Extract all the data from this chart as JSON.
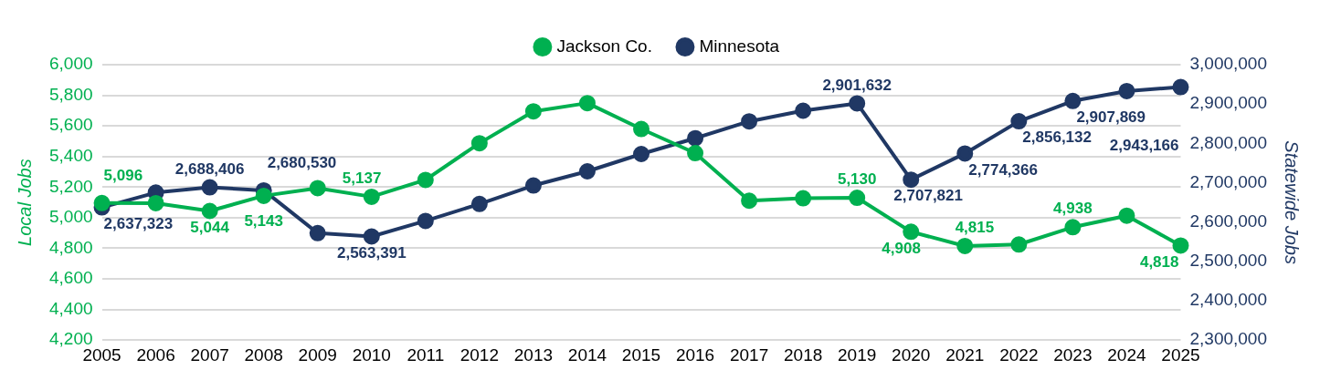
{
  "chart_data": {
    "type": "line",
    "categories": [
      "2005",
      "2006",
      "2007",
      "2008",
      "2009",
      "2010",
      "2011",
      "2012",
      "2013",
      "2014",
      "2015",
      "2016",
      "2017",
      "2018",
      "2019",
      "2020",
      "2021",
      "2022",
      "2023",
      "2024",
      "2025"
    ],
    "series": [
      {
        "name": "Jackson Co.",
        "color": "#00b050",
        "axis": "y",
        "values": [
          5096,
          5095,
          5044,
          5143,
          5193,
          5137,
          5247,
          5487,
          5695,
          5749,
          5580,
          5422,
          5111,
          5127,
          5130,
          4908,
          4815,
          4825,
          4938,
          5013,
          4818
        ],
        "value_labels": [
          "5,096",
          null,
          "5,044",
          "5,143",
          null,
          "5,137",
          null,
          null,
          null,
          null,
          null,
          null,
          null,
          null,
          "5,130",
          "4,908",
          "4,815",
          null,
          "4,938",
          null,
          "4,818"
        ]
      },
      {
        "name": "Minnesota",
        "color": "#203864",
        "axis": "y2",
        "values": [
          2637323,
          2675000,
          2688406,
          2680530,
          2572000,
          2563391,
          2603000,
          2646000,
          2693000,
          2729000,
          2773000,
          2813000,
          2856000,
          2883000,
          2901632,
          2707821,
          2774366,
          2856132,
          2907869,
          2933000,
          2943166
        ],
        "value_labels": [
          "2,637,323",
          null,
          "2,688,406",
          "2,680,530",
          null,
          "2,563,391",
          null,
          null,
          null,
          null,
          null,
          null,
          null,
          null,
          "2,901,632",
          "2,707,821",
          "2,774,366",
          "2,856,132",
          "2,907,869",
          null,
          "2,943,166"
        ]
      }
    ],
    "ylabel": "Local Jobs",
    "y2label": "Statewide Jobs",
    "ylim": [
      4200,
      6000
    ],
    "yticks": [
      {
        "value": 4200,
        "label": "4,200"
      },
      {
        "value": 4400,
        "label": "4,400"
      },
      {
        "value": 4600,
        "label": "4,600"
      },
      {
        "value": 4800,
        "label": "4,800"
      },
      {
        "value": 5000,
        "label": "5,000"
      },
      {
        "value": 5200,
        "label": "5,200"
      },
      {
        "value": 5400,
        "label": "5,400"
      },
      {
        "value": 5600,
        "label": "5,600"
      },
      {
        "value": 5800,
        "label": "5,800"
      },
      {
        "value": 6000,
        "label": "6,000"
      }
    ],
    "y2lim": [
      2300000,
      3000000
    ],
    "y2ticks": [
      {
        "value": 2300000,
        "label": "2,300,000"
      },
      {
        "value": 2400000,
        "label": "2,400,000"
      },
      {
        "value": 2500000,
        "label": "2,500,000"
      },
      {
        "value": 2600000,
        "label": "2,600,000"
      },
      {
        "value": 2700000,
        "label": "2,700,000"
      },
      {
        "value": 2800000,
        "label": "2,800,000"
      },
      {
        "value": 2900000,
        "label": "2,900,000"
      },
      {
        "value": 3000000,
        "label": "3,000,000"
      }
    ],
    "grid": "y",
    "legend": "top",
    "marker": "circle"
  }
}
